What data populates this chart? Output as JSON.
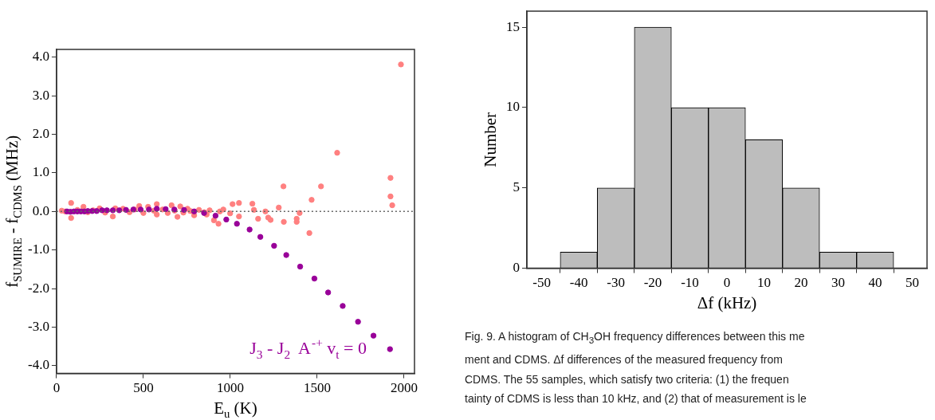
{
  "chart_data": [
    {
      "type": "scatter",
      "xlabel": "E$_{u}$ (K)",
      "ylabel": "f$_{SUMIRE}$ - f$_{CDMS}$ (MHz)",
      "xlim": [
        0,
        2060
      ],
      "ylim": [
        -4.2,
        4.2
      ],
      "xticks": [
        0,
        500,
        1000,
        1500,
        2000
      ],
      "yticks": [
        {
          "value": 4,
          "label": "4.0"
        },
        {
          "value": 3,
          "label": "3.0"
        },
        {
          "value": 2,
          "label": "2.0"
        },
        {
          "value": 1,
          "label": "1.0"
        },
        {
          "value": 0,
          "label": "0.0"
        },
        {
          "value": -1,
          "label": "-1.0"
        },
        {
          "value": -2,
          "label": "-2.0"
        },
        {
          "value": -3,
          "label": "-3.0"
        },
        {
          "value": -4,
          "label": "-4.0"
        }
      ],
      "grid": false,
      "legend": false,
      "marker": "circle",
      "ref_lines": [
        {
          "axis": "y",
          "value": 0,
          "color": "#666666",
          "line_style": "dotted"
        }
      ],
      "series": [
        {
          "color": "#ff8080",
          "x": [
            30,
            50,
            84,
            84,
            120,
            155,
            180,
            210,
            248,
            280,
            324,
            338,
            383,
            420,
            450,
            476,
            500,
            527,
            560,
            577,
            577,
            610,
            640,
            662,
            680,
            696,
            712,
            730,
            754,
            770,
            792,
            820,
            850,
            864,
            881,
            906,
            932,
            940,
            960,
            999,
            1013,
            1050,
            1050,
            1127,
            1136,
            1160,
            1202,
            1218,
            1232,
            1279,
            1306,
            1308,
            1382,
            1382,
            1399,
            1455,
            1468,
            1522,
            1615,
            1922,
            1922,
            1932,
            1982
          ],
          "values": [
            0.02,
            0.0,
            0.22,
            -0.17,
            0.04,
            0.12,
            -0.02,
            0.03,
            0.08,
            -0.03,
            -0.13,
            0.08,
            0.07,
            -0.02,
            0.05,
            0.14,
            -0.04,
            0.12,
            0.02,
            0.19,
            -0.08,
            0.05,
            -0.04,
            0.16,
            0.02,
            -0.14,
            0.13,
            -0.03,
            0.07,
            0.01,
            -0.1,
            0.04,
            -0.02,
            -0.08,
            0.03,
            -0.23,
            -0.32,
            0.0,
            0.05,
            -0.05,
            0.19,
            0.22,
            -0.13,
            0.2,
            0.04,
            -0.19,
            0.0,
            -0.16,
            -0.22,
            0.1,
            0.65,
            -0.27,
            -0.19,
            -0.27,
            -0.04,
            -0.56,
            0.3,
            0.65,
            1.52,
            0.87,
            0.39,
            0.16,
            3.81
          ]
        },
        {
          "name": "J$_{3}$ - J$_{2}$  A$^{-+}$ v$_{t}$ = 0",
          "color": "#990099",
          "x": [
            60,
            80,
            100,
            120,
            140,
            160,
            180,
            205,
            231,
            262,
            290,
            324,
            361,
            400,
            442,
            484,
            532,
            577,
            628,
            678,
            734,
            792,
            849,
            915,
            977,
            1038,
            1111,
            1173,
            1252,
            1322,
            1402,
            1484,
            1563,
            1647,
            1735,
            1824,
            1919
          ],
          "values": [
            0.0,
            -0.01,
            0.0,
            0.0,
            0.0,
            0.0,
            0.01,
            0.01,
            0.01,
            0.03,
            0.03,
            0.03,
            0.03,
            0.04,
            0.05,
            0.05,
            0.05,
            0.07,
            0.06,
            0.05,
            0.04,
            0.0,
            -0.04,
            -0.11,
            -0.21,
            -0.32,
            -0.47,
            -0.66,
            -0.89,
            -1.13,
            -1.43,
            -1.74,
            -2.1,
            -2.45,
            -2.86,
            -3.22,
            -3.57
          ]
        }
      ]
    },
    {
      "type": "histogram",
      "xlabel": "Δf (kHz)",
      "ylabel": "Number",
      "bins": [
        -45,
        -35,
        -25,
        -15,
        -5,
        5,
        15,
        25,
        35,
        45
      ],
      "values": [
        1,
        5,
        15,
        10,
        10,
        8,
        5,
        1,
        1
      ],
      "color": "#bdbdbd",
      "xlim": [
        -54,
        54
      ],
      "ylim": [
        0,
        16
      ],
      "xticks": [
        -50,
        -40,
        -30,
        -20,
        -10,
        0,
        10,
        20,
        30,
        40,
        50
      ],
      "yticks": [
        0,
        5,
        10,
        15
      ],
      "grid": false,
      "legend": false,
      "annotations": [
        "Fig. 9. A histogram of CH$_{3}$OH frequency differences between this me",
        "ment and CDMS. Δf differences of the measured frequency from",
        "CDMS. The 55 samples, which satisfy two criteria: (1) the frequen",
        "tainty of CDMS is less than 10 kHz, and (2) that of measurement is le"
      ]
    }
  ]
}
